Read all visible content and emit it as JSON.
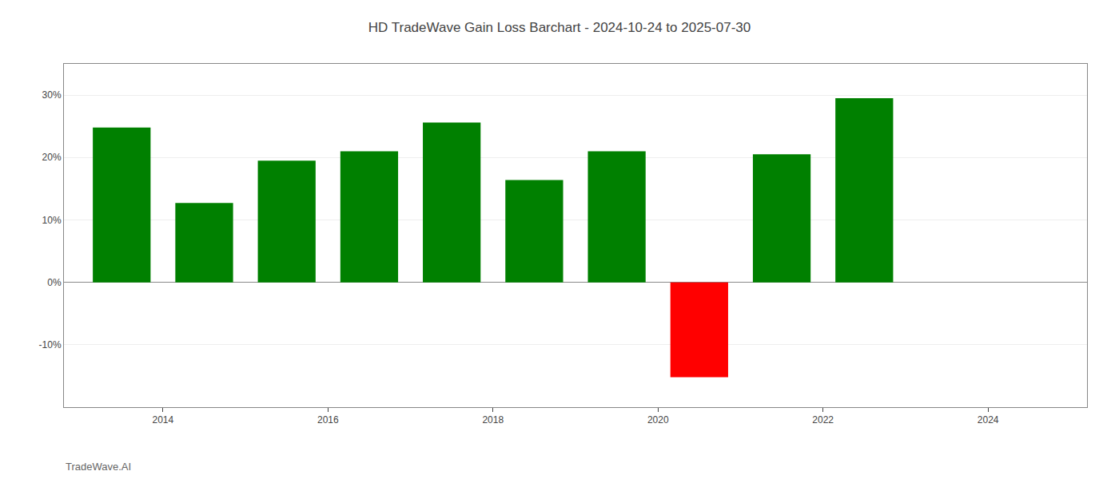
{
  "chart_data": {
    "type": "bar",
    "title": "HD TradeWave Gain Loss Barchart - 2024-10-24 to 2025-07-30",
    "annotations": [
      "TradeWave.AI"
    ],
    "x": [
      2013.5,
      2014.5,
      2015.5,
      2016.5,
      2017.5,
      2018.5,
      2019.5,
      2020.5,
      2021.5,
      2022.5
    ],
    "values": [
      24.8,
      12.7,
      19.5,
      21.0,
      25.6,
      16.4,
      21.0,
      -15.2,
      20.5,
      29.5
    ],
    "colors": [
      "#008000",
      "#008000",
      "#008000",
      "#008000",
      "#008000",
      "#008000",
      "#008000",
      "#ff0000",
      "#008000",
      "#008000"
    ],
    "xlim": [
      2012.8,
      2025.2
    ],
    "xticks": [
      2014,
      2016,
      2018,
      2020,
      2022,
      2024
    ],
    "ylim": [
      -20,
      35
    ],
    "yticks": [
      {
        "value": -10,
        "label": "-10%"
      },
      {
        "value": 0,
        "label": "0%"
      },
      {
        "value": 10,
        "label": "10%"
      },
      {
        "value": 20,
        "label": "20%"
      },
      {
        "value": 30,
        "label": "30%"
      }
    ],
    "grid": true
  }
}
